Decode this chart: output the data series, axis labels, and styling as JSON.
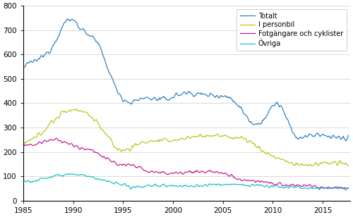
{
  "title": "",
  "xlabel": "",
  "ylabel": "",
  "xlim": [
    1985.0,
    2017.75
  ],
  "ylim": [
    0,
    800
  ],
  "yticks": [
    0,
    100,
    200,
    300,
    400,
    500,
    600,
    700,
    800
  ],
  "xticks": [
    1985,
    1990,
    1995,
    2000,
    2005,
    2010,
    2015
  ],
  "colors": {
    "Totalt": "#1a72b8",
    "I personbil": "#b5be00",
    "Fotgangare": "#c2008c",
    "Ovriga": "#00b8be"
  },
  "legend_labels": [
    "Totalt",
    "I personbil",
    "Fotgängare och cyklister",
    "Övriga"
  ],
  "background_color": "#ffffff",
  "grid_color": "#cccccc",
  "figsize": [
    5.0,
    3.08
  ],
  "dpi": 100
}
